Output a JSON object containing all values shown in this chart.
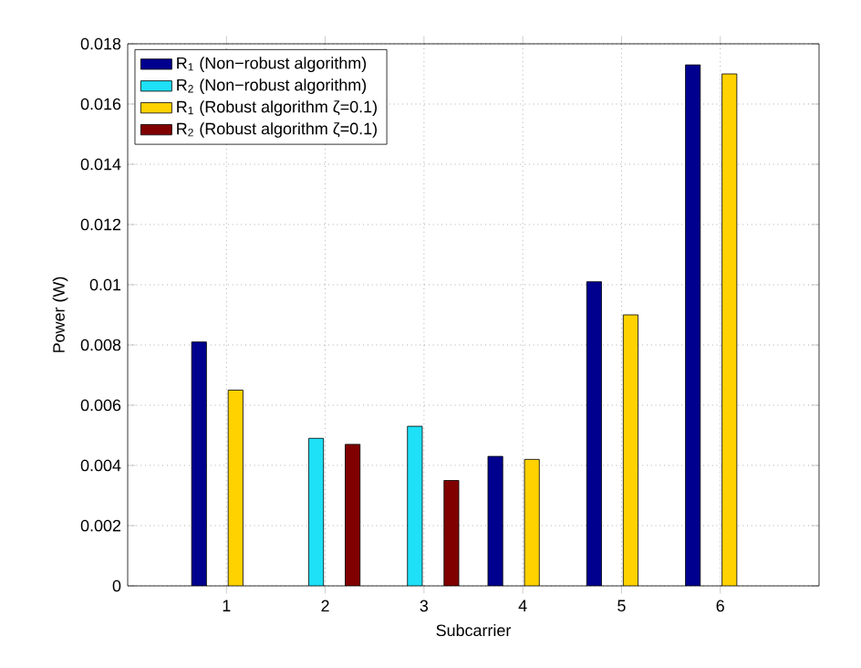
{
  "chart_data": {
    "type": "bar",
    "xlabel": "Subcarrier",
    "ylabel": "Power (W)",
    "categories": [
      "1",
      "2",
      "3",
      "4",
      "5",
      "6"
    ],
    "series": [
      {
        "name": "R$_{1}$ (Non−robust algorithm)",
        "color": "#00008f",
        "values": [
          0.0081,
          null,
          null,
          0.0043,
          0.0101,
          0.0173
        ]
      },
      {
        "name": "R$_{2}$ (Non−robust algorithm)",
        "color": "#1ee0f6",
        "values": [
          null,
          0.0049,
          0.0053,
          null,
          null,
          null
        ]
      },
      {
        "name": "R$_{1}$ (Robust algorithm ζ=0.1)",
        "color": "#ffd200",
        "values": [
          0.0065,
          null,
          null,
          0.0042,
          0.009,
          0.017
        ]
      },
      {
        "name": "R$_{2}$ (Robust algorithm ζ=0.1)",
        "color": "#800000",
        "values": [
          null,
          0.0047,
          0.0035,
          null,
          null,
          null
        ]
      }
    ],
    "ylim": [
      0,
      0.018
    ],
    "yticks": [
      0,
      0.002,
      0.004,
      0.006,
      0.008,
      0.01,
      0.012,
      0.014,
      0.016,
      0.018
    ],
    "grid": true,
    "legend": "top left"
  }
}
